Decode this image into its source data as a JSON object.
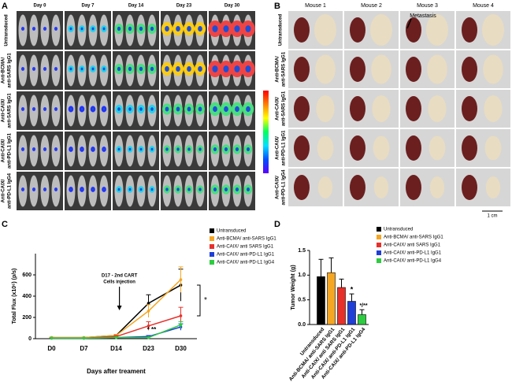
{
  "panels": {
    "a": {
      "label": "A",
      "columns": [
        "Day 0",
        "Day 7",
        "Day 14",
        "Day 23",
        "Day 30"
      ],
      "rows": [
        [
          "Untransduced"
        ],
        [
          "Anti-BCMA/",
          "anti-SARS IgG1"
        ],
        [
          "Anti-CAIX/",
          "anti-SARS IgG1"
        ],
        [
          "Anti-CAIX/",
          "anti-PD-L1 IgG1"
        ],
        [
          "Anti-CAIX/",
          "anti-PD-L1 IgG4"
        ]
      ]
    },
    "b": {
      "label": "B",
      "columns": [
        "Mouse 1",
        "Mouse 2",
        "Mouse 3",
        "Mouse 4"
      ],
      "rows": [
        [
          "Untransduced"
        ],
        [
          "Anti-BCMA/",
          "anti-SARS IgG1"
        ],
        [
          "Anti-CAIX/",
          "anti-SARS IgG1"
        ],
        [
          "Anti-CAIX/",
          "anti-PD-L1 IgG1"
        ],
        [
          "Anti-CAIX/",
          "anti-PD-L1 IgG4"
        ]
      ],
      "annotation": "Metastasis",
      "scale": "1 cm"
    }
  },
  "chart_data": [
    {
      "type": "line",
      "panel": "C",
      "ylabel": "Total Flux (x10⁶) (p/s)",
      "xlabel": "Days after treament",
      "categories": [
        "D0",
        "D7",
        "D14",
        "D23",
        "D30"
      ],
      "ylim": [
        0,
        800
      ],
      "yticks": [
        0,
        200,
        400,
        600
      ],
      "series": [
        {
          "name": "Untransduced",
          "color": "#000000",
          "values": [
            10,
            10,
            30,
            333,
            504
          ],
          "errors": [
            5,
            5,
            10,
            80,
            150
          ]
        },
        {
          "name": "Anti-BCMA/ anti-SARS IgG1",
          "color": "#f5a623",
          "values": [
            10,
            10,
            30,
            260,
            555
          ],
          "errors": [
            5,
            5,
            10,
            60,
            120
          ]
        },
        {
          "name": "Anti-CAIX/ anti SARS IgG1",
          "color": "#e8302a",
          "values": [
            5,
            5,
            20,
            120,
            215
          ],
          "errors": [
            3,
            3,
            10,
            40,
            80
          ]
        },
        {
          "name": "Anti-CAIX/ anti-PD-L1 IgG1",
          "color": "#1f3fd6",
          "values": [
            5,
            5,
            10,
            20,
            110
          ],
          "errors": [
            2,
            2,
            5,
            10,
            30
          ]
        },
        {
          "name": "Anti-CAIX/ anti-PD-L1 IgG4",
          "color": "#2ecc40",
          "values": [
            5,
            5,
            10,
            10,
            130
          ],
          "errors": [
            2,
            2,
            5,
            5,
            30
          ]
        }
      ],
      "annotations": [
        "D17 - 2nd CART",
        "Cells injection",
        "*",
        "* **"
      ]
    },
    {
      "type": "bar",
      "panel": "D",
      "ylabel": "Tumor Weight (g)",
      "categories": [
        "Untransduced",
        "Anti-BCMA/ anti-SARS IgG1",
        "Anti-CAIX/ anti SARS IgG1",
        "Anti-CAIX/ anti-PD-L1 IgG1",
        "Anti-CAIX/ anti-PD-L1 IgG4"
      ],
      "values": [
        0.97,
        1.05,
        0.75,
        0.47,
        0.2
      ],
      "errors": [
        0.35,
        0.3,
        0.17,
        0.15,
        0.1
      ],
      "colors": [
        "#000000",
        "#f5a623",
        "#e8302a",
        "#1f3fd6",
        "#2ecc40"
      ],
      "ylim": [
        0,
        1.5
      ],
      "yticks": [
        {
          "value": 0,
          "label": "0.0"
        },
        {
          "value": 0.5,
          "label": "0.5"
        },
        {
          "value": 1,
          "label": "1.0"
        },
        {
          "value": 1.5,
          "label": "1.5"
        }
      ],
      "annotations": [
        "*",
        "*/**"
      ]
    }
  ]
}
